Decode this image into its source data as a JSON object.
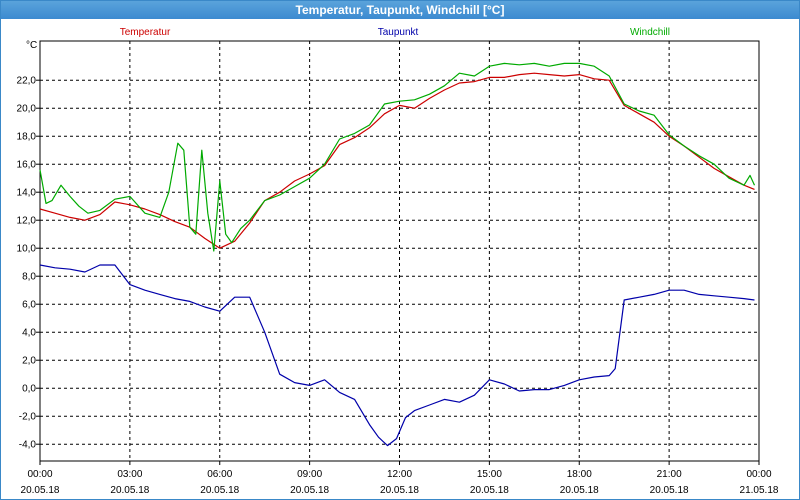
{
  "window": {
    "title": "Temperatur, Taupunkt, Windchill [°C]"
  },
  "colors": {
    "temperatur": "#cc0000",
    "taupunkt": "#0000aa",
    "windchill": "#00aa00"
  },
  "chart_data": {
    "type": "line",
    "title": "Temperatur, Taupunkt, Windchill [°C]",
    "ylabel": "°C",
    "xlabel": "",
    "ylim": [
      -5.2,
      24.8
    ],
    "xlim": [
      0,
      24
    ],
    "grid": true,
    "legend_placement": "top",
    "y_ticks": [
      "22,0",
      "20,0",
      "18,0",
      "16,0",
      "14,0",
      "12,0",
      "10,0",
      "8,0",
      "6,0",
      "4,0",
      "2,0",
      "0,0",
      "-2,0",
      "-4,0"
    ],
    "y_tick_values": [
      22,
      20,
      18,
      16,
      14,
      12,
      10,
      8,
      6,
      4,
      2,
      0,
      -2,
      -4
    ],
    "x_ticks": [
      {
        "time": "00:00",
        "date": "20.05.18"
      },
      {
        "time": "03:00",
        "date": "20.05.18"
      },
      {
        "time": "06:00",
        "date": "20.05.18"
      },
      {
        "time": "09:00",
        "date": "20.05.18"
      },
      {
        "time": "12:00",
        "date": "20.05.18"
      },
      {
        "time": "15:00",
        "date": "20.05.18"
      },
      {
        "time": "18:00",
        "date": "20.05.18"
      },
      {
        "time": "21:00",
        "date": "20.05.18"
      },
      {
        "time": "00:00",
        "date": "21.05.18"
      }
    ],
    "x_tick_hours": [
      0,
      3,
      6,
      9,
      12,
      15,
      18,
      21,
      24
    ],
    "series": [
      {
        "name": "Temperatur",
        "x": [
          0,
          0.5,
          1.0,
          1.5,
          2.0,
          2.5,
          3.0,
          3.5,
          4.0,
          4.5,
          5.0,
          5.5,
          6.0,
          6.5,
          7.0,
          7.5,
          8.0,
          8.5,
          9.0,
          9.5,
          10.0,
          10.5,
          11.0,
          11.5,
          12.0,
          12.5,
          13.0,
          13.5,
          14.0,
          14.5,
          15.0,
          15.5,
          16.0,
          16.5,
          17.0,
          17.5,
          18.0,
          18.5,
          19.0,
          19.5,
          20.0,
          20.5,
          21.0,
          21.5,
          22.0,
          22.5,
          23.0,
          23.5,
          23.85
        ],
        "values": [
          12.8,
          12.5,
          12.2,
          12.0,
          12.4,
          13.3,
          13.1,
          12.8,
          12.4,
          11.9,
          11.5,
          10.7,
          10.0,
          10.5,
          11.8,
          13.4,
          14.0,
          14.8,
          15.3,
          15.9,
          17.4,
          17.9,
          18.6,
          19.6,
          20.2,
          20.0,
          20.7,
          21.3,
          21.8,
          21.9,
          22.2,
          22.2,
          22.4,
          22.5,
          22.4,
          22.3,
          22.4,
          22.1,
          22.0,
          20.2,
          19.6,
          19.0,
          18.0,
          17.3,
          16.5,
          15.7,
          15.1,
          14.5,
          14.2
        ]
      },
      {
        "name": "Taupunkt",
        "x": [
          0,
          0.5,
          1.0,
          1.5,
          2.0,
          2.5,
          3.0,
          3.5,
          4.0,
          4.5,
          5.0,
          5.5,
          6.0,
          6.5,
          7.0,
          7.5,
          8.0,
          8.5,
          9.0,
          9.5,
          10.0,
          10.5,
          11.0,
          11.3,
          11.6,
          11.9,
          12.2,
          12.5,
          13.0,
          13.5,
          14.0,
          14.5,
          15.0,
          15.5,
          16.0,
          16.5,
          17.0,
          17.5,
          18.0,
          18.5,
          19.0,
          19.2,
          19.5,
          20.0,
          20.5,
          21.0,
          21.5,
          22.0,
          22.5,
          23.0,
          23.5,
          23.85
        ],
        "values": [
          8.8,
          8.6,
          8.5,
          8.3,
          8.8,
          8.8,
          7.4,
          7.0,
          6.7,
          6.4,
          6.2,
          5.8,
          5.5,
          6.5,
          6.5,
          4.0,
          1.0,
          0.4,
          0.2,
          0.6,
          -0.3,
          -0.8,
          -2.6,
          -3.5,
          -4.1,
          -3.6,
          -2.1,
          -1.6,
          -1.2,
          -0.8,
          -1.0,
          -0.5,
          0.6,
          0.3,
          -0.2,
          -0.1,
          -0.1,
          0.2,
          0.6,
          0.8,
          0.9,
          1.4,
          6.3,
          6.5,
          6.7,
          7.0,
          7.0,
          6.7,
          6.6,
          6.5,
          6.4,
          6.3
        ]
      },
      {
        "name": "Windchill",
        "x": [
          0,
          0.2,
          0.4,
          0.7,
          1.0,
          1.3,
          1.6,
          2.0,
          2.5,
          3.0,
          3.5,
          4.0,
          4.3,
          4.6,
          4.8,
          5.0,
          5.2,
          5.4,
          5.6,
          5.8,
          6.0,
          6.2,
          6.4,
          6.7,
          7.0,
          7.5,
          8.0,
          8.5,
          9.0,
          9.5,
          10.0,
          10.5,
          11.0,
          11.5,
          12.0,
          12.5,
          13.0,
          13.5,
          14.0,
          14.5,
          15.0,
          15.5,
          16.0,
          16.5,
          17.0,
          17.5,
          18.0,
          18.5,
          19.0,
          19.5,
          20.0,
          20.5,
          21.0,
          21.5,
          22.0,
          22.5,
          23.0,
          23.5,
          23.7,
          23.85
        ],
        "values": [
          15.6,
          13.2,
          13.4,
          14.5,
          13.7,
          13.0,
          12.5,
          12.7,
          13.5,
          13.7,
          12.5,
          12.2,
          14.0,
          17.5,
          17.0,
          11.5,
          11.0,
          17.0,
          12.5,
          9.8,
          14.8,
          11.0,
          10.4,
          11.4,
          12.0,
          13.4,
          13.8,
          14.4,
          15.0,
          16.0,
          17.8,
          18.2,
          18.8,
          20.3,
          20.5,
          20.6,
          21.0,
          21.6,
          22.5,
          22.3,
          23.0,
          23.2,
          23.1,
          23.2,
          23.0,
          23.2,
          23.2,
          23.0,
          22.3,
          20.3,
          19.8,
          19.5,
          18.1,
          17.3,
          16.6,
          16.0,
          15.0,
          14.5,
          15.2,
          14.5
        ]
      }
    ]
  }
}
